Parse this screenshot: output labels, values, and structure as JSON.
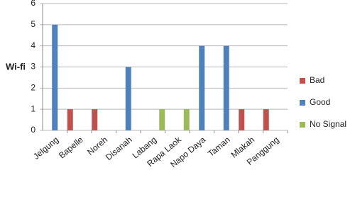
{
  "chart_data": {
    "type": "bar",
    "y_label": "Wi-fi",
    "categories": [
      "Jelgung",
      "Bapelle",
      "Noreh",
      "Disanah",
      "Labang",
      "Rapa Laok",
      "Napo Daya",
      "Taman",
      "Mlakah",
      "Panggung"
    ],
    "series": [
      {
        "name": "Bad",
        "color": "#c0504d",
        "values": [
          null,
          1,
          1,
          null,
          null,
          null,
          null,
          null,
          1,
          1
        ]
      },
      {
        "name": "Good",
        "color": "#4f81bd",
        "values": [
          5,
          null,
          null,
          3,
          null,
          null,
          4,
          4,
          null,
          null
        ]
      },
      {
        "name": "No Signal",
        "color": "#9bbb59",
        "values": [
          null,
          null,
          null,
          null,
          1,
          1,
          null,
          null,
          null,
          null
        ]
      }
    ],
    "ylim": [
      0,
      6
    ],
    "yticks": [
      0,
      1,
      2,
      3,
      4,
      5,
      6
    ],
    "grid": true,
    "legend": "right"
  }
}
